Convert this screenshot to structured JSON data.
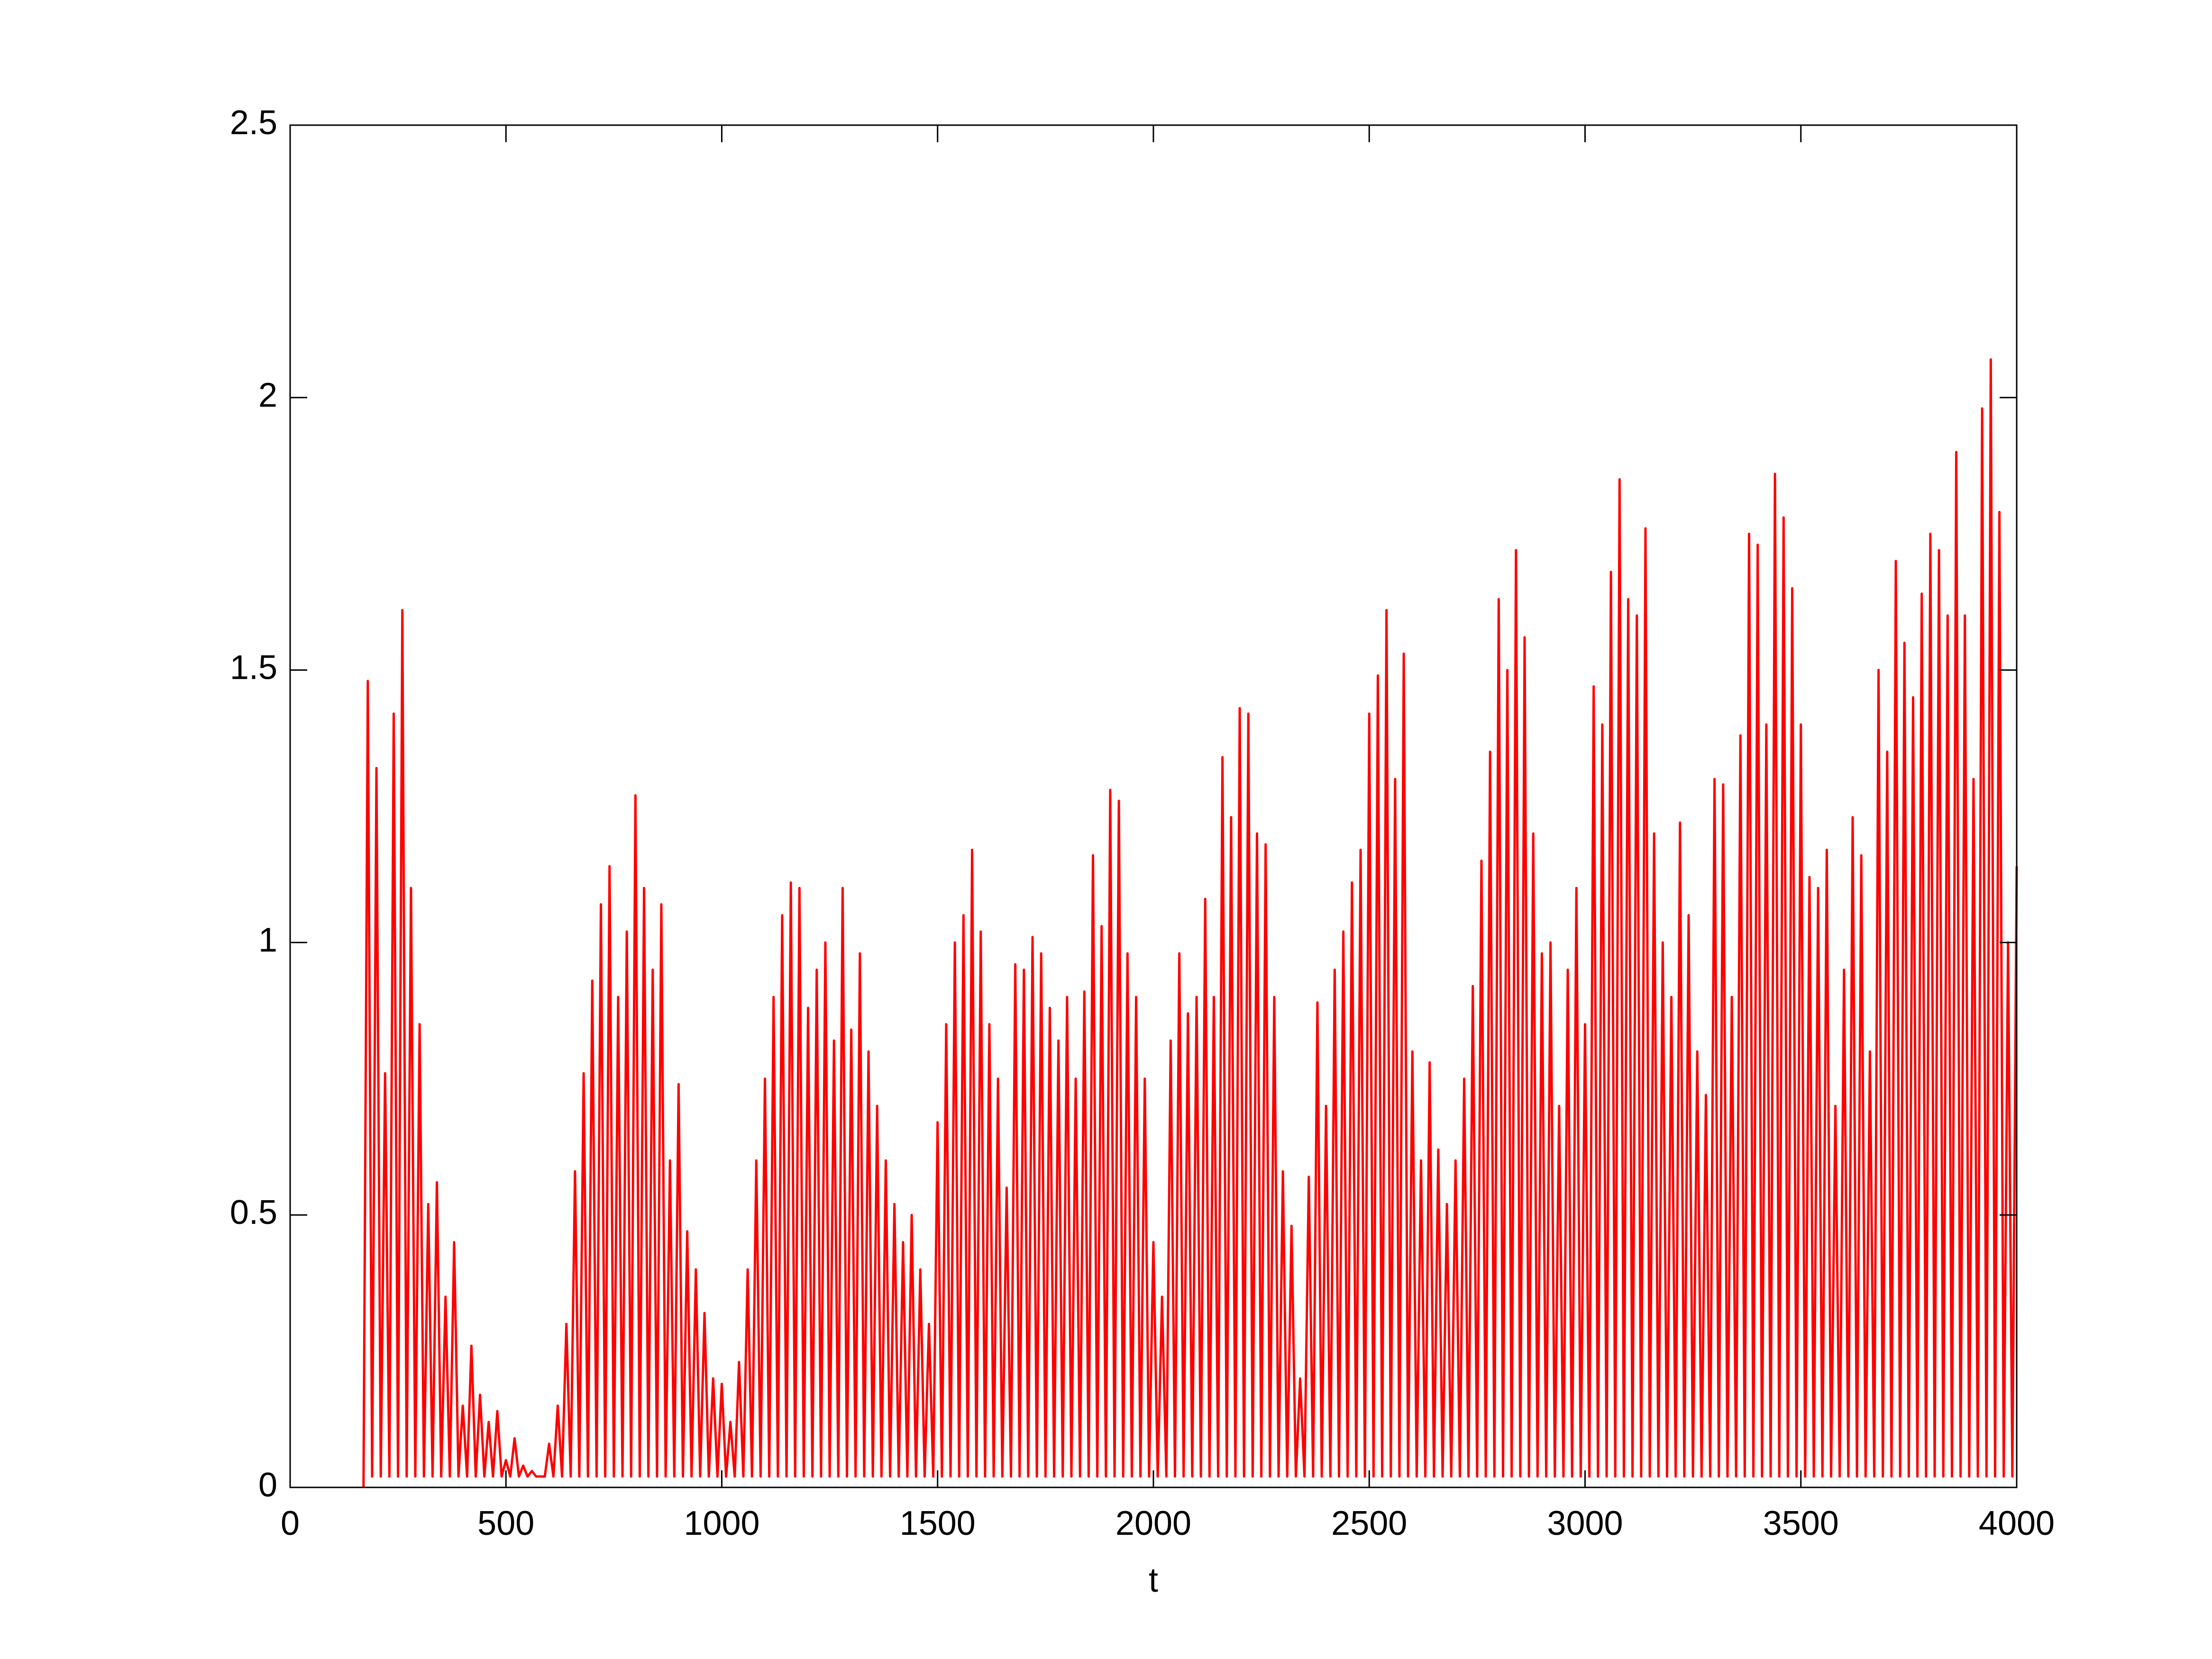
{
  "chart_data": {
    "type": "line",
    "xlabel": "t",
    "color": "#ff0000",
    "xlim": [
      0,
      4000
    ],
    "xticks": [
      0,
      500,
      1000,
      1500,
      2000,
      2500,
      3000,
      3500,
      4000
    ],
    "ylim": [
      0,
      2.5
    ],
    "yticks": [
      0,
      0.5,
      1,
      1.5,
      2,
      2.5
    ],
    "grid": false,
    "x": [
      170,
      180,
      190,
      200,
      210,
      220,
      230,
      240,
      250,
      260,
      270,
      280,
      290,
      300,
      310,
      320,
      330,
      340,
      350,
      360,
      370,
      380,
      390,
      400,
      410,
      420,
      430,
      440,
      450,
      460,
      470,
      480,
      490,
      500,
      510,
      520,
      530,
      540,
      550,
      560,
      570,
      580,
      590,
      600,
      610,
      620,
      630,
      640,
      650,
      660,
      670,
      680,
      690,
      700,
      710,
      720,
      730,
      740,
      750,
      760,
      770,
      780,
      790,
      800,
      810,
      820,
      830,
      840,
      850,
      860,
      870,
      880,
      890,
      900,
      910,
      920,
      930,
      940,
      950,
      960,
      970,
      980,
      990,
      1000,
      1010,
      1020,
      1030,
      1040,
      1050,
      1060,
      1070,
      1080,
      1090,
      1100,
      1110,
      1120,
      1130,
      1140,
      1150,
      1160,
      1170,
      1180,
      1190,
      1200,
      1210,
      1220,
      1230,
      1240,
      1250,
      1260,
      1270,
      1280,
      1290,
      1300,
      1310,
      1320,
      1330,
      1340,
      1350,
      1360,
      1370,
      1380,
      1390,
      1400,
      1410,
      1420,
      1430,
      1440,
      1450,
      1460,
      1470,
      1480,
      1490,
      1500,
      1510,
      1520,
      1530,
      1540,
      1550,
      1560,
      1570,
      1580,
      1590,
      1600,
      1610,
      1620,
      1630,
      1640,
      1650,
      1660,
      1670,
      1680,
      1690,
      1700,
      1710,
      1720,
      1730,
      1740,
      1750,
      1760,
      1770,
      1780,
      1790,
      1800,
      1810,
      1820,
      1830,
      1840,
      1850,
      1860,
      1870,
      1880,
      1890,
      1900,
      1910,
      1920,
      1930,
      1940,
      1950,
      1960,
      1970,
      1980,
      1990,
      2000,
      2010,
      2020,
      2030,
      2040,
      2050,
      2060,
      2070,
      2080,
      2090,
      2100,
      2110,
      2120,
      2130,
      2140,
      2150,
      2160,
      2170,
      2180,
      2190,
      2200,
      2210,
      2220,
      2230,
      2240,
      2250,
      2260,
      2270,
      2280,
      2290,
      2300,
      2310,
      2320,
      2330,
      2340,
      2350,
      2360,
      2370,
      2380,
      2390,
      2400,
      2410,
      2420,
      2430,
      2440,
      2450,
      2460,
      2470,
      2480,
      2490,
      2500,
      2510,
      2520,
      2530,
      2540,
      2550,
      2560,
      2570,
      2580,
      2590,
      2600,
      2610,
      2620,
      2630,
      2640,
      2650,
      2660,
      2670,
      2680,
      2690,
      2700,
      2710,
      2720,
      2730,
      2740,
      2750,
      2760,
      2770,
      2780,
      2790,
      2800,
      2810,
      2820,
      2830,
      2840,
      2850,
      2860,
      2870,
      2880,
      2890,
      2900,
      2910,
      2920,
      2930,
      2940,
      2950,
      2960,
      2970,
      2980,
      2990,
      3000,
      3010,
      3020,
      3030,
      3040,
      3050,
      3060,
      3070,
      3080,
      3090,
      3100,
      3110,
      3120,
      3130,
      3140,
      3150,
      3160,
      3170,
      3180,
      3190,
      3200,
      3210,
      3220,
      3230,
      3240,
      3250,
      3260,
      3270,
      3280,
      3290,
      3300,
      3310,
      3320,
      3330,
      3340,
      3350,
      3360,
      3370,
      3380,
      3390,
      3400,
      3410,
      3420,
      3430,
      3440,
      3450,
      3460,
      3470,
      3480,
      3490,
      3500,
      3510,
      3520,
      3530,
      3540,
      3550,
      3560,
      3570,
      3580,
      3590,
      3600,
      3610,
      3620,
      3630,
      3640,
      3650,
      3660,
      3670,
      3680,
      3690,
      3700,
      3710,
      3720,
      3730,
      3740,
      3750,
      3760,
      3770,
      3780,
      3790,
      3800,
      3810,
      3820,
      3830,
      3840,
      3850,
      3860,
      3870,
      3880,
      3890,
      3900,
      3910,
      3920,
      3930,
      3940,
      3950,
      3960,
      3970,
      3980,
      3990,
      4000
    ],
    "values": [
      0,
      1.48,
      0.02,
      1.32,
      0.02,
      0.76,
      0.02,
      1.42,
      0.02,
      1.61,
      0.02,
      1.1,
      0.02,
      0.85,
      0.02,
      0.52,
      0.02,
      0.56,
      0.02,
      0.35,
      0.02,
      0.45,
      0.02,
      0.15,
      0.02,
      0.26,
      0.02,
      0.17,
      0.02,
      0.12,
      0.02,
      0.14,
      0.02,
      0.05,
      0.02,
      0.09,
      0.02,
      0.04,
      0.02,
      0.03,
      0.02,
      0.02,
      0.02,
      0.08,
      0.02,
      0.15,
      0.02,
      0.3,
      0.02,
      0.58,
      0.02,
      0.76,
      0.02,
      0.93,
      0.02,
      1.07,
      0.02,
      1.14,
      0.02,
      0.9,
      0.02,
      1.02,
      0.02,
      1.27,
      0.02,
      1.1,
      0.02,
      0.95,
      0.02,
      1.07,
      0.02,
      0.6,
      0.02,
      0.74,
      0.02,
      0.47,
      0.02,
      0.4,
      0.02,
      0.32,
      0.02,
      0.2,
      0.02,
      0.19,
      0.02,
      0.12,
      0.02,
      0.23,
      0.02,
      0.4,
      0.02,
      0.6,
      0.02,
      0.75,
      0.02,
      0.9,
      0.02,
      1.05,
      0.02,
      1.11,
      0.02,
      1.1,
      0.02,
      0.88,
      0.02,
      0.95,
      0.02,
      1.0,
      0.02,
      0.82,
      0.02,
      1.1,
      0.02,
      0.84,
      0.02,
      0.98,
      0.02,
      0.8,
      0.02,
      0.7,
      0.02,
      0.6,
      0.02,
      0.52,
      0.02,
      0.45,
      0.02,
      0.5,
      0.02,
      0.4,
      0.02,
      0.3,
      0.02,
      0.67,
      0.02,
      0.85,
      0.02,
      1.0,
      0.02,
      1.05,
      0.02,
      1.17,
      0.02,
      1.02,
      0.02,
      0.85,
      0.02,
      0.75,
      0.02,
      0.55,
      0.02,
      0.96,
      0.02,
      0.95,
      0.02,
      1.01,
      0.02,
      0.98,
      0.02,
      0.88,
      0.02,
      0.82,
      0.02,
      0.9,
      0.02,
      0.75,
      0.02,
      0.91,
      0.02,
      1.16,
      0.02,
      1.03,
      0.02,
      1.28,
      0.02,
      1.26,
      0.02,
      0.98,
      0.02,
      0.9,
      0.02,
      0.75,
      0.02,
      0.45,
      0.02,
      0.35,
      0.02,
      0.82,
      0.02,
      0.98,
      0.02,
      0.87,
      0.02,
      0.9,
      0.02,
      1.08,
      0.02,
      0.9,
      0.02,
      1.34,
      0.02,
      1.23,
      0.02,
      1.43,
      0.02,
      1.42,
      0.02,
      1.2,
      0.02,
      1.18,
      0.02,
      0.9,
      0.02,
      0.58,
      0.02,
      0.48,
      0.02,
      0.2,
      0.02,
      0.57,
      0.02,
      0.89,
      0.02,
      0.7,
      0.02,
      0.95,
      0.02,
      1.02,
      0.02,
      1.11,
      0.02,
      1.17,
      0.02,
      1.42,
      0.02,
      1.49,
      0.02,
      1.61,
      0.02,
      1.3,
      0.02,
      1.53,
      0.02,
      0.8,
      0.02,
      0.6,
      0.02,
      0.78,
      0.02,
      0.62,
      0.02,
      0.52,
      0.02,
      0.6,
      0.02,
      0.75,
      0.02,
      0.92,
      0.02,
      1.15,
      0.02,
      1.35,
      0.02,
      1.63,
      0.02,
      1.5,
      0.02,
      1.72,
      0.02,
      1.56,
      0.02,
      1.2,
      0.02,
      0.98,
      0.02,
      1.0,
      0.02,
      0.7,
      0.02,
      0.95,
      0.02,
      1.1,
      0.02,
      0.85,
      0.02,
      1.47,
      0.02,
      1.4,
      0.02,
      1.68,
      0.02,
      1.85,
      0.02,
      1.63,
      0.02,
      1.6,
      0.02,
      1.76,
      0.02,
      1.2,
      0.02,
      1.0,
      0.02,
      0.9,
      0.02,
      1.22,
      0.02,
      1.05,
      0.02,
      0.8,
      0.02,
      0.72,
      0.02,
      1.3,
      0.02,
      1.29,
      0.02,
      0.9,
      0.02,
      1.38,
      0.02,
      1.75,
      0.02,
      1.73,
      0.02,
      1.4,
      0.02,
      1.86,
      0.02,
      1.78,
      0.02,
      1.65,
      0.02,
      1.4,
      0.02,
      1.12,
      0.02,
      1.1,
      0.02,
      1.17,
      0.02,
      0.7,
      0.02,
      0.95,
      0.02,
      1.23,
      0.02,
      1.16,
      0.02,
      0.8,
      0.02,
      1.5,
      0.02,
      1.35,
      0.02,
      1.7,
      0.02,
      1.55,
      0.02,
      1.45,
      0.02,
      1.64,
      0.02,
      1.75,
      0.02,
      1.72,
      0.02,
      1.6,
      0.02,
      1.9,
      0.02,
      1.6,
      0.02,
      1.3,
      0.02,
      1.98,
      0.02,
      2.07,
      0.02,
      1.79,
      0.02,
      1.0,
      0.02,
      1.14
    ]
  }
}
